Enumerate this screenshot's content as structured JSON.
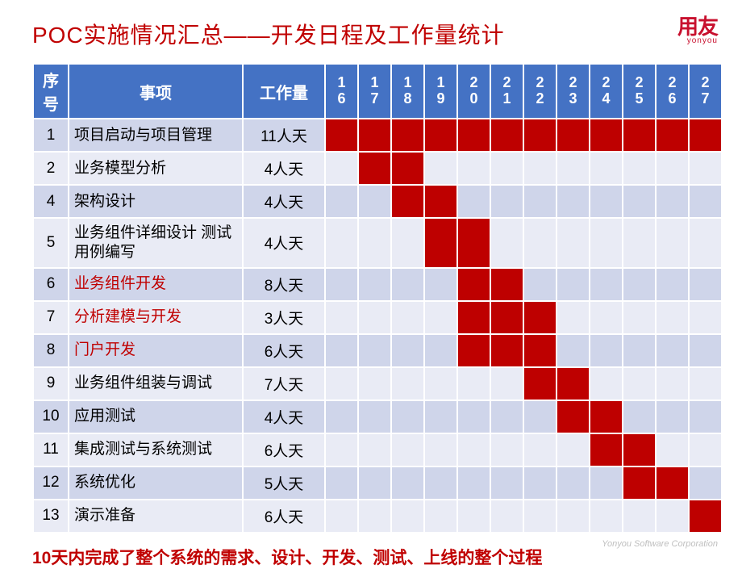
{
  "title": "POC实施情况汇总——开发日程及工作量统计",
  "logo": {
    "cn": "用友",
    "en": "yonyou"
  },
  "corp": "Yonyou Software Corporation",
  "footer": "10天内完成了整个系统的需求、设计、开发、测试、上线的整个过程",
  "headers": {
    "seq": "序号",
    "item": "事项",
    "work": "工作量"
  },
  "days": [
    "16",
    "17",
    "18",
    "19",
    "20",
    "21",
    "22",
    "23",
    "24",
    "25",
    "26",
    "27"
  ],
  "colors": {
    "header_bg": "#4472c4",
    "header_fg": "#ffffff",
    "row_odd": "#cfd5ea",
    "row_even": "#e9ebf5",
    "bar": "#be0000",
    "accent": "#c00000",
    "corp": "#bfbfbf"
  },
  "rows": [
    {
      "seq": "1",
      "item": "项目启动与项目管理",
      "work": "11人天",
      "highlight": false,
      "fill": [
        1,
        1,
        1,
        1,
        1,
        1,
        1,
        1,
        1,
        1,
        1,
        1
      ]
    },
    {
      "seq": "2",
      "item": "业务模型分析",
      "work": "4人天",
      "highlight": false,
      "fill": [
        0,
        1,
        1,
        0,
        0,
        0,
        0,
        0,
        0,
        0,
        0,
        0
      ]
    },
    {
      "seq": "4",
      "item": "架构设计",
      "work": "4人天",
      "highlight": false,
      "fill": [
        0,
        0,
        1,
        1,
        0,
        0,
        0,
        0,
        0,
        0,
        0,
        0
      ]
    },
    {
      "seq": "5",
      "item": "业务组件详细设计 测试用例编写",
      "work": "4人天",
      "highlight": false,
      "fill": [
        0,
        0,
        0,
        1,
        1,
        0,
        0,
        0,
        0,
        0,
        0,
        0
      ]
    },
    {
      "seq": "6",
      "item": "业务组件开发",
      "work": "8人天",
      "highlight": true,
      "fill": [
        0,
        0,
        0,
        0,
        1,
        1,
        0,
        0,
        0,
        0,
        0,
        0
      ]
    },
    {
      "seq": "7",
      "item": "分析建模与开发",
      "work": "3人天",
      "highlight": true,
      "fill": [
        0,
        0,
        0,
        0,
        1,
        1,
        1,
        0,
        0,
        0,
        0,
        0
      ]
    },
    {
      "seq": "8",
      "item": "门户开发",
      "work": "6人天",
      "highlight": true,
      "fill": [
        0,
        0,
        0,
        0,
        1,
        1,
        1,
        0,
        0,
        0,
        0,
        0
      ]
    },
    {
      "seq": "9",
      "item": "业务组件组装与调试",
      "work": "7人天",
      "highlight": false,
      "fill": [
        0,
        0,
        0,
        0,
        0,
        0,
        1,
        1,
        0,
        0,
        0,
        0
      ]
    },
    {
      "seq": "10",
      "item": "应用测试",
      "work": "4人天",
      "highlight": false,
      "fill": [
        0,
        0,
        0,
        0,
        0,
        0,
        0,
        1,
        1,
        0,
        0,
        0
      ]
    },
    {
      "seq": "11",
      "item": "集成测试与系统测试",
      "work": "6人天",
      "highlight": false,
      "fill": [
        0,
        0,
        0,
        0,
        0,
        0,
        0,
        0,
        1,
        1,
        0,
        0
      ]
    },
    {
      "seq": "12",
      "item": "系统优化",
      "work": "5人天",
      "highlight": false,
      "fill": [
        0,
        0,
        0,
        0,
        0,
        0,
        0,
        0,
        0,
        1,
        1,
        0
      ]
    },
    {
      "seq": "13",
      "item": "演示准备",
      "work": "6人天",
      "highlight": false,
      "fill": [
        0,
        0,
        0,
        0,
        0,
        0,
        0,
        0,
        0,
        0,
        0,
        1
      ]
    }
  ]
}
